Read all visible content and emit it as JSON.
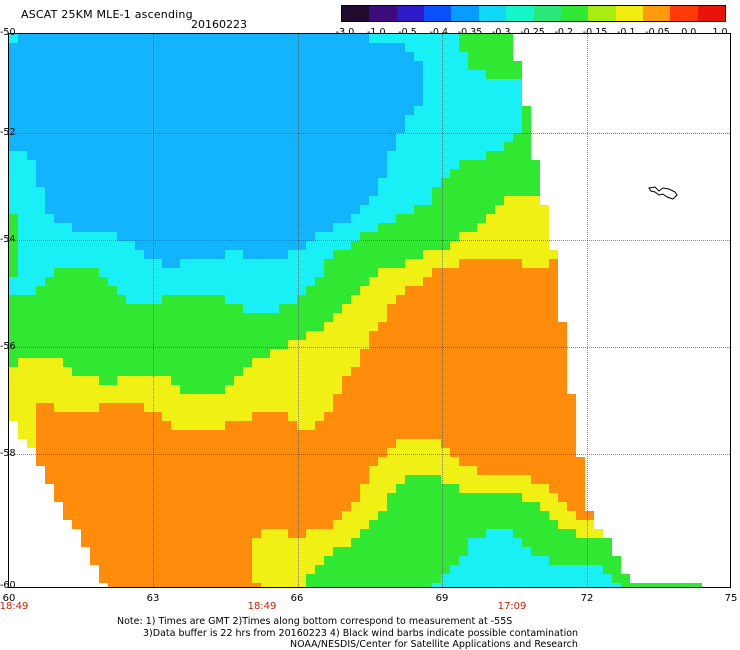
{
  "header": {
    "title": "ASCAT 25KM MLE-1 ascending",
    "date": "20160223"
  },
  "colorbar": {
    "ticks": [
      "-3.0",
      "-1.0",
      "-0.5",
      "-0.4",
      "-0.35",
      "-0.3",
      "-0.25",
      "-0.2",
      "-0.15",
      "-0.1",
      "-0.05",
      "0.0",
      "1.0"
    ],
    "colors": [
      "#200a2e",
      "#3c0c7a",
      "#2e1ac6",
      "#0a50ff",
      "#0a9bff",
      "#10d8f5",
      "#14f5c8",
      "#28e878",
      "#30e832",
      "#a8ec14",
      "#f0ec10",
      "#ff9a0a",
      "#ff3a0a",
      "#e8140a"
    ]
  },
  "map": {
    "y_labels": [
      "-50",
      "-52",
      "-54",
      "-56",
      "-58",
      "-60"
    ],
    "x_labels": [
      "60",
      "63",
      "66",
      "69",
      "72",
      "75"
    ],
    "time_labels": [
      "18:49",
      "18:49",
      "17:09"
    ],
    "colors": {
      "blue": "#12b4ff",
      "cyan": "#18f0f5",
      "green": "#30e832",
      "yellow": "#f0f014",
      "orange": "#ff8c0a"
    }
  },
  "notes": {
    "line1": "Note: 1) Times are GMT 2)Times along bottom correspond to measurement at -55S",
    "line2": "3)Data buffer is 22 hrs from 20160223 4) Black wind barbs indicate possible contamination",
    "line3": "NOAA/NESDIS/Center for Satellite Applications and Research"
  }
}
